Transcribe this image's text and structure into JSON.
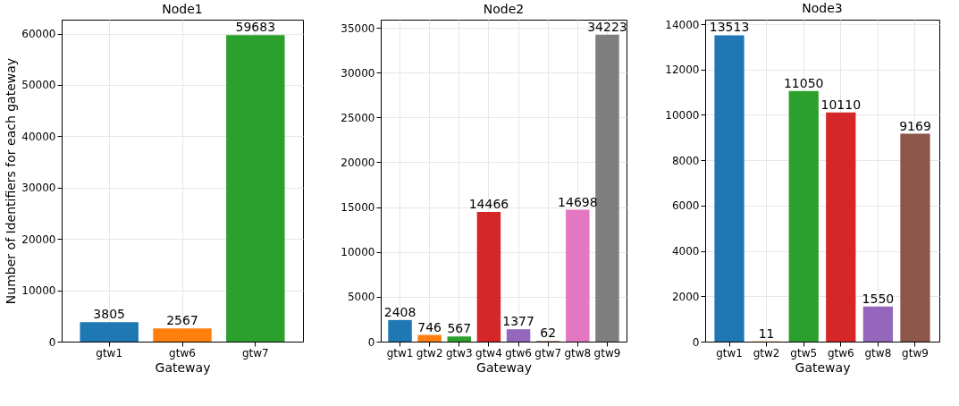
{
  "chart_data": [
    {
      "type": "bar",
      "title": "Node1",
      "xlabel": "Gateway",
      "ylabel": "Number of Identifiers for each gateway",
      "categories": [
        "gtw1",
        "gtw6",
        "gtw7"
      ],
      "values": [
        3805,
        2567,
        59683
      ],
      "colors": [
        "#1f77b4",
        "#ff7f0e",
        "#2ca02c"
      ],
      "ylim": [
        0,
        62700
      ],
      "yticks": [
        0,
        10000,
        20000,
        30000,
        40000,
        50000,
        60000
      ],
      "grid": true,
      "data_labels": true
    },
    {
      "type": "bar",
      "title": "Node2",
      "xlabel": "Gateway",
      "categories": [
        "gtw1",
        "gtw2",
        "gtw3",
        "gtw4",
        "gtw6",
        "gtw7",
        "gtw8",
        "gtw9"
      ],
      "values": [
        2408,
        746,
        567,
        14466,
        1377,
        62,
        14698,
        34223
      ],
      "colors": [
        "#1f77b4",
        "#ff7f0e",
        "#2ca02c",
        "#d62728",
        "#9467bd",
        "#8c564b",
        "#e377c2",
        "#7f7f7f"
      ],
      "ylim": [
        0,
        35900
      ],
      "yticks": [
        0,
        5000,
        10000,
        15000,
        20000,
        25000,
        30000,
        35000
      ],
      "grid": true,
      "data_labels": true
    },
    {
      "type": "bar",
      "title": "Node3",
      "xlabel": "Gateway",
      "categories": [
        "gtw1",
        "gtw2",
        "gtw5",
        "gtw6",
        "gtw8",
        "gtw9"
      ],
      "values": [
        13513,
        11,
        11050,
        10110,
        1550,
        9169
      ],
      "colors": [
        "#1f77b4",
        "#ff7f0e",
        "#2ca02c",
        "#d62728",
        "#9467bd",
        "#8c564b"
      ],
      "ylim": [
        0,
        14200
      ],
      "yticks": [
        0,
        2000,
        4000,
        6000,
        8000,
        10000,
        12000,
        14000
      ],
      "grid": true,
      "data_labels": true
    }
  ]
}
